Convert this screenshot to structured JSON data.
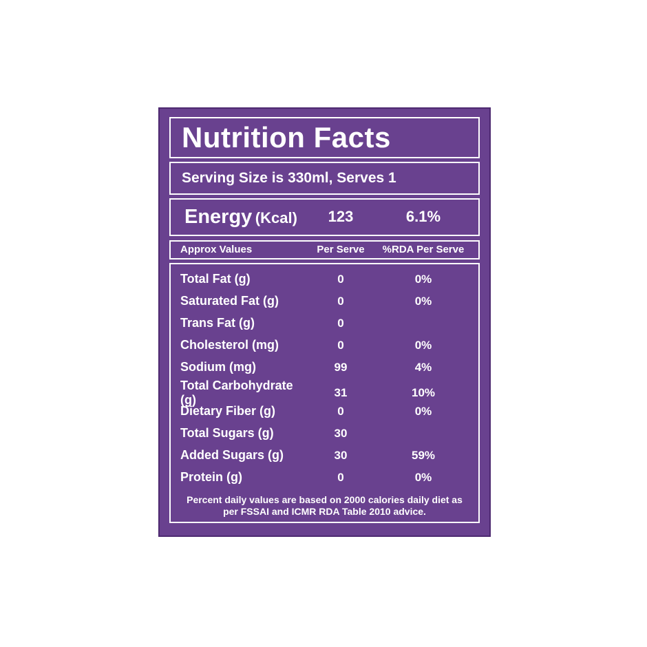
{
  "label": {
    "title": "Nutrition Facts",
    "serving_line": "Serving Size is 330ml, Serves 1",
    "energy": {
      "name": "Energy",
      "unit": "(Kcal)",
      "per_serve": "123",
      "rda": "6.1%"
    },
    "columns": {
      "name": "Approx Values",
      "per_serve": "Per Serve",
      "rda": "%RDA Per Serve"
    },
    "rows": [
      {
        "name": "Total Fat (g)",
        "per_serve": "0",
        "rda": "0%"
      },
      {
        "name": "Saturated Fat (g)",
        "per_serve": "0",
        "rda": "0%"
      },
      {
        "name": "Trans Fat (g)",
        "per_serve": "0",
        "rda": ""
      },
      {
        "name": "Cholesterol (mg)",
        "per_serve": "0",
        "rda": "0%"
      },
      {
        "name": "Sodium (mg)",
        "per_serve": "99",
        "rda": "4%"
      },
      {
        "name": "Total Carbohydrate (g)",
        "per_serve": "31",
        "rda": "10%"
      },
      {
        "name": "Dietary Fiber (g)",
        "per_serve": "0",
        "rda": "0%"
      },
      {
        "name": "Total Sugars (g)",
        "per_serve": "30",
        "rda": ""
      },
      {
        "name": "Added Sugars (g)",
        "per_serve": "30",
        "rda": "59%"
      },
      {
        "name": "Protein (g)",
        "per_serve": "0",
        "rda": "0%"
      }
    ],
    "footnote_line1": "Percent daily values are based on 2000 calories daily diet as",
    "footnote_line2": "per FSSAI and ICMR RDA Table 2010 advice.",
    "colors": {
      "panel": "#69418F",
      "panel_border": "#4D2970",
      "text": "#FFFFFF"
    }
  }
}
